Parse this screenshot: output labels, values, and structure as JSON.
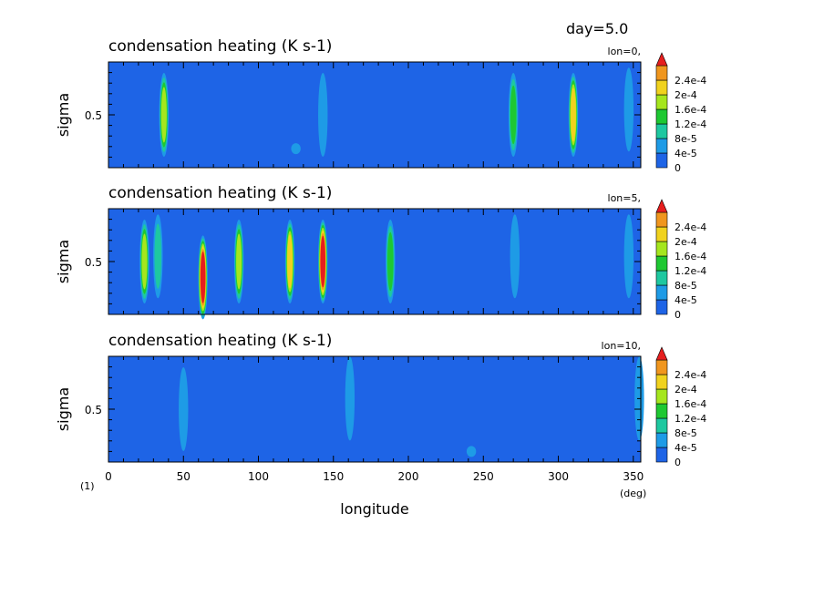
{
  "header": {
    "day_label": "day=5.0"
  },
  "figure_labels": {
    "panel_index": "(1)",
    "x_unit": "(deg)"
  },
  "colors": {
    "levels": [
      {
        "label": "0",
        "color": "#1e64e6"
      },
      {
        "label": "4e-5",
        "color": "#1e9be6"
      },
      {
        "label": "8e-5",
        "color": "#1ec8a0"
      },
      {
        "label": "1.2e-4",
        "color": "#1ec832"
      },
      {
        "label": "1.6e-4",
        "color": "#a5e61e"
      },
      {
        "label": "2e-4",
        "color": "#f0d21e"
      },
      {
        "label": "2.4e-4",
        "color": "#f0961e"
      }
    ],
    "over": "#e61e1e"
  },
  "chart_data": [
    {
      "type": "heatmap",
      "title": "condensation heating (K s-1)",
      "subtitle": "lon=0,",
      "xlabel": "",
      "ylabel": "sigma",
      "xlim": [
        0,
        355
      ],
      "x_ticks": [],
      "y_ticks": [
        0.5
      ],
      "levels": [
        0,
        4e-05,
        8e-05,
        0.00012,
        0.00016,
        0.0002,
        0.00024
      ],
      "features": [
        {
          "lon": 37,
          "sigma": 0.5,
          "max": 0.00019
        },
        {
          "lon": 125,
          "sigma": 0.18,
          "max": 6e-05
        },
        {
          "lon": 143,
          "sigma": 0.5,
          "max": 6e-05
        },
        {
          "lon": 270,
          "sigma": 0.5,
          "max": 0.00015
        },
        {
          "lon": 310,
          "sigma": 0.5,
          "max": 0.00023
        },
        {
          "lon": 347,
          "sigma": 0.55,
          "max": 5e-05
        }
      ]
    },
    {
      "type": "heatmap",
      "title": "condensation heating (K s-1)",
      "subtitle": "lon=5,",
      "xlabel": "",
      "ylabel": "sigma",
      "xlim": [
        0,
        355
      ],
      "x_ticks": [],
      "y_ticks": [
        0.5
      ],
      "levels": [
        0,
        4e-05,
        8e-05,
        0.00012,
        0.00016,
        0.0002,
        0.00024
      ],
      "features": [
        {
          "lon": 24,
          "sigma": 0.5,
          "max": 0.00017
        },
        {
          "lon": 33,
          "sigma": 0.55,
          "max": 9e-05
        },
        {
          "lon": 63,
          "sigma": 0.35,
          "max": 0.00026
        },
        {
          "lon": 87,
          "sigma": 0.5,
          "max": 0.00018
        },
        {
          "lon": 121,
          "sigma": 0.5,
          "max": 0.00021
        },
        {
          "lon": 143,
          "sigma": 0.5,
          "max": 0.00026
        },
        {
          "lon": 188,
          "sigma": 0.5,
          "max": 0.00015
        },
        {
          "lon": 271,
          "sigma": 0.55,
          "max": 6e-05
        },
        {
          "lon": 347,
          "sigma": 0.55,
          "max": 5e-05
        }
      ]
    },
    {
      "type": "heatmap",
      "title": "condensation heating (K s-1)",
      "subtitle": "lon=10,",
      "xlabel": "longitude",
      "ylabel": "sigma",
      "xlim": [
        0,
        355
      ],
      "x_ticks": [
        "0",
        "50",
        "100",
        "150",
        "200",
        "250",
        "300",
        "350"
      ],
      "y_ticks": [
        0.5
      ],
      "levels": [
        0,
        4e-05,
        8e-05,
        0.00012,
        0.00016,
        0.0002,
        0.00024
      ],
      "features": [
        {
          "lon": 50,
          "sigma": 0.5,
          "max": 6e-05
        },
        {
          "lon": 161,
          "sigma": 0.6,
          "max": 7e-05
        },
        {
          "lon": 242,
          "sigma": 0.1,
          "max": 5e-05
        },
        {
          "lon": 354,
          "sigma": 0.6,
          "max": 5e-05
        }
      ]
    }
  ]
}
